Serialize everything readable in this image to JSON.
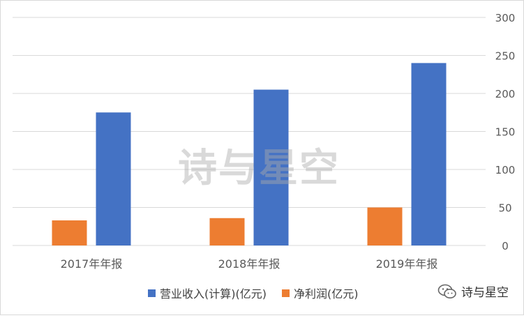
{
  "chart_data": {
    "type": "bar",
    "categories": [
      "2017年年报",
      "2018年年报",
      "2019年年报"
    ],
    "series": [
      {
        "name": "净利润(亿元)",
        "values": [
          33,
          36,
          50
        ],
        "color": "#ed7d31"
      },
      {
        "name": "营业收入(计算)(亿元)",
        "values": [
          175,
          205,
          240
        ],
        "color": "#4472c4"
      }
    ],
    "ylim": [
      0,
      300
    ],
    "yticks": [
      0,
      50,
      100,
      150,
      200,
      250,
      300
    ],
    "y_axis_side": "right",
    "grid": true,
    "legend_position": "bottom",
    "legend_order": [
      "营业收入(计算)(亿元)",
      "净利润(亿元)"
    ]
  },
  "watermark": "诗与星空",
  "wechat_label": "诗与星空",
  "wechat_icon": "wechat-icon"
}
